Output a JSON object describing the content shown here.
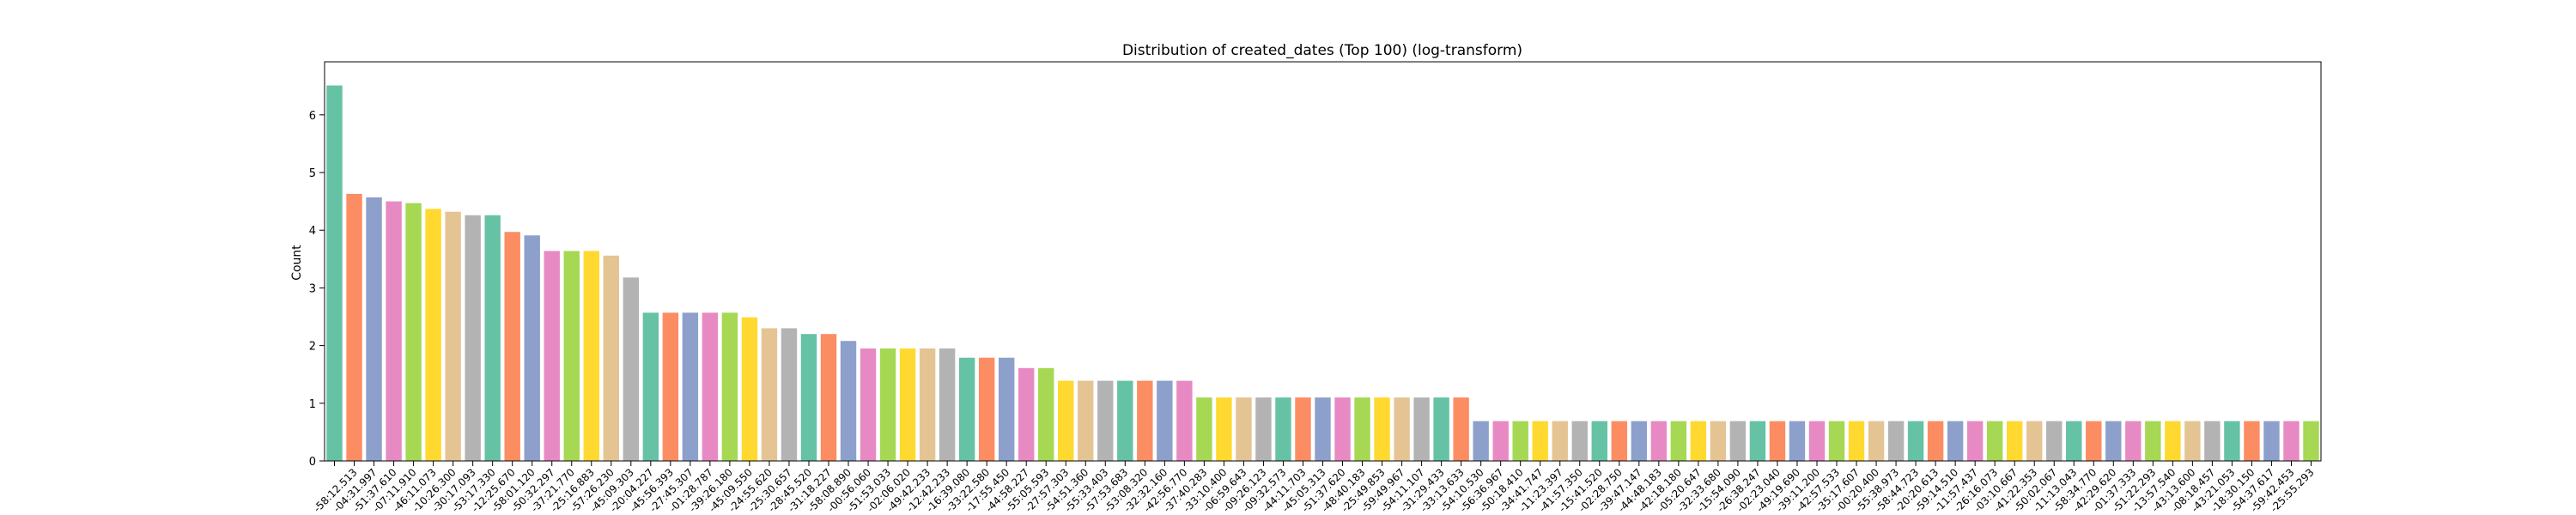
{
  "chart_data": {
    "type": "bar",
    "title": "Distribution of created_dates (Top 100) (log-transform)",
    "xlabel": "",
    "ylabel": "Count",
    "ylim": [
      0,
      6.92
    ],
    "yticks": [
      0,
      1,
      2,
      3,
      4,
      5,
      6
    ],
    "grid": false,
    "legend": "none",
    "palette": [
      "#66c2a5",
      "#fc8d62",
      "#8da0cb",
      "#e78ac3",
      "#a6d854",
      "#ffd92f",
      "#e5c494",
      "#b3b3b3"
    ],
    "categories": [
      "",
      "-58:12.513",
      "-04:31.997",
      "-51:37.610",
      "-07:11.910",
      "-46:11.073",
      "-10:26.300",
      "-30:17.093",
      "-53:17.330",
      "-12:25.670",
      "-58:01.120",
      "-50:32.297",
      "-37:21.770",
      "-25:16.883",
      "-57:26.230",
      "-45:09.303",
      "-20:04.227",
      "-45:56.393",
      "-27:45.307",
      "-01:28.787",
      "-39:26.180",
      "-45:09.550",
      "-24:55.620",
      "-25:30.657",
      "-28:45.520",
      "-31:18.227",
      "-58:08.890",
      "-00:56.060",
      "-51:53.033",
      "-02:06.020",
      "-49:42.233",
      "-12:42.233",
      "-16:39.080",
      "-33:22.580",
      "-17:55.450",
      "-44:58.227",
      "-55:05.593",
      "-27:57.303",
      "-54:51.360",
      "-55:33.403",
      "-57:53.683",
      "-53:08.320",
      "-32:32.160",
      "-42:56.770",
      "-37:40.283",
      "-33:10.400",
      "-06:59.643",
      "-09:26.123",
      "-09:32.573",
      "-44:11.703",
      "-45:05.313",
      "-51:37.620",
      "-48:40.183",
      "-25:49.853",
      "-59:49.967",
      "-54:11.107",
      "-31:29.433",
      "-33:13.633",
      "-54:10.530",
      "-56:36.967",
      "-50:18.410",
      "-34:41.747",
      "-11:23.397",
      "-41:57.350",
      "-15:41.520",
      "-02:28.750",
      "-39:47.147",
      "-44:48.183",
      "-42:18.180",
      "-05:20.647",
      "-32:33.680",
      "-15:54.090",
      "-26:38.247",
      "-02:23.040",
      "-49:19.690",
      "-39:11.200",
      "-42:57.533",
      "-35:17.607",
      "-00:20.400",
      "-55:38.973",
      "-58:44.723",
      "-20:20.613",
      "-59:14.510",
      "-11:57.437",
      "-26:16.073",
      "-03:10.667",
      "-41:22.353",
      "-50:02.067",
      "-11:13.043",
      "-58:34.770",
      "-42:29.620",
      "-01:37.333",
      "-51:22.293",
      "-13:57.540",
      "-43:13.600",
      "-08:18.457",
      "-43:21.053",
      "-18:30.150",
      "-54:37.617",
      "-59:42.453",
      "-25:55.293"
    ],
    "values": [
      6.51,
      4.63,
      4.57,
      4.5,
      4.47,
      4.37,
      4.32,
      4.26,
      4.26,
      3.97,
      3.91,
      3.64,
      3.64,
      3.64,
      3.56,
      3.18,
      2.57,
      2.57,
      2.57,
      2.57,
      2.57,
      2.49,
      2.3,
      2.3,
      2.2,
      2.2,
      2.08,
      1.95,
      1.95,
      1.95,
      1.95,
      1.95,
      1.79,
      1.79,
      1.79,
      1.61,
      1.61,
      1.39,
      1.39,
      1.39,
      1.39,
      1.39,
      1.39,
      1.39,
      1.1,
      1.1,
      1.1,
      1.1,
      1.1,
      1.1,
      1.1,
      1.1,
      1.1,
      1.1,
      1.1,
      1.1,
      1.1,
      1.1,
      0.69,
      0.69,
      0.69,
      0.69,
      0.69,
      0.69,
      0.69,
      0.69,
      0.69,
      0.69,
      0.69,
      0.69,
      0.69,
      0.69,
      0.69,
      0.69,
      0.69,
      0.69,
      0.69,
      0.69,
      0.69,
      0.69,
      0.69,
      0.69,
      0.69,
      0.69,
      0.69,
      0.69,
      0.69,
      0.69,
      0.69,
      0.69,
      0.69,
      0.69,
      0.69,
      0.69,
      0.69,
      0.69,
      0.69,
      0.69,
      0.69,
      0.69,
      0.69
    ]
  }
}
